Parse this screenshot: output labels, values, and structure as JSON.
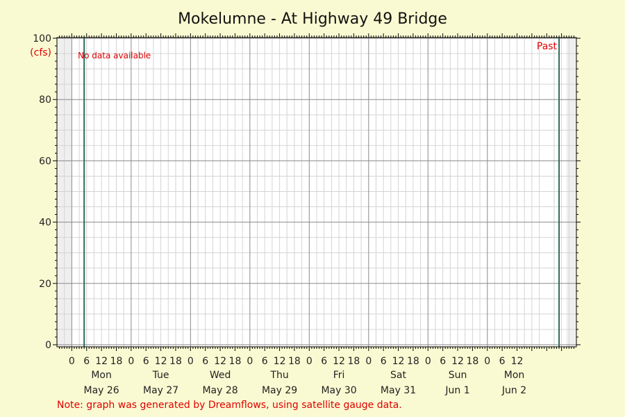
{
  "chart_data": {
    "type": "line",
    "title": "Mokelumne - At Highway 49 Bridge",
    "ylabel": "(cfs)",
    "ylim": [
      0,
      100
    ],
    "yticks": [
      0,
      20,
      40,
      60,
      80,
      100
    ],
    "xlim_hours": [
      -6,
      204
    ],
    "shaded_ranges_hours": [
      [
        -6,
        0
      ],
      [
        200,
        204
      ]
    ],
    "marker_lines_hours": [
      5,
      197
    ],
    "hour_tick_labels": [
      "0",
      "6",
      "12",
      "18"
    ],
    "final_hour_labels": [
      "0",
      "6",
      "12"
    ],
    "days": [
      {
        "weekday": "Mon",
        "date": "May 26"
      },
      {
        "weekday": "Tue",
        "date": "May 27"
      },
      {
        "weekday": "Wed",
        "date": "May 28"
      },
      {
        "weekday": "Thu",
        "date": "May 29"
      },
      {
        "weekday": "Fri",
        "date": "May 30"
      },
      {
        "weekday": "Sat",
        "date": "May 31"
      },
      {
        "weekday": "Sun",
        "date": "Jun 1"
      },
      {
        "weekday": "Mon",
        "date": "Jun 2"
      }
    ],
    "series": [],
    "annotations": {
      "no_data": "No data available",
      "past": "Past"
    },
    "colors": {
      "background": "#fafad2",
      "plot": "#ffffff",
      "shaded": "#efefef",
      "grid_minor": "#d4d4d4",
      "grid_major": "#8a8a8a",
      "marker_line": "#2e6b57",
      "annotation": "#e00000"
    }
  },
  "footer": {
    "note": "Note: graph was generated by Dreamflows, using satellite gauge data."
  }
}
